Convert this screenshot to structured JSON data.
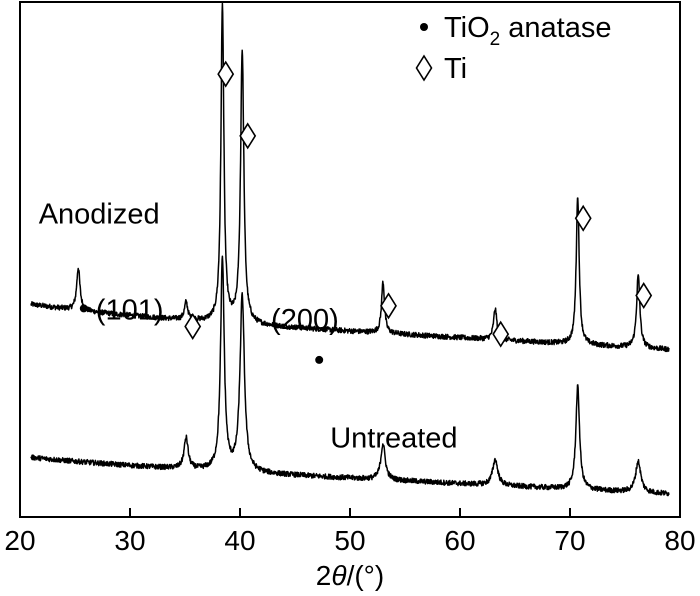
{
  "chart_data": {
    "type": "line",
    "title": "",
    "xlabel": "2θ/(°)",
    "xlabel_parts": {
      "prefix": "2",
      "symbol": "θ",
      "suffix": "/(°)"
    },
    "ylabel": "",
    "xlim": [
      20,
      80
    ],
    "ylim": [
      0,
      100
    ],
    "x_ticks": [
      20,
      30,
      40,
      50,
      60,
      70,
      80
    ],
    "x_tick_labels": [
      "20",
      "30",
      "40",
      "50",
      "60",
      "70",
      "80"
    ],
    "y_ticks_shown": false,
    "grid": false,
    "legend": {
      "placement": "top-right",
      "entries": [
        {
          "marker": "dot",
          "label_main": "TiO",
          "label_sub": "2",
          "label_rest": " anatase"
        },
        {
          "marker": "diamond",
          "label_main": "Ti",
          "label_sub": "",
          "label_rest": ""
        }
      ]
    },
    "series": [
      {
        "name": "Anodized",
        "baseline_start": 39.5,
        "baseline_end": 32.5,
        "peaks": [
          {
            "x": 25.3,
            "height": 8.3,
            "width": 0.18
          },
          {
            "x": 35.1,
            "height": 3.4,
            "width": 0.18
          },
          {
            "x": 38.4,
            "height": 61.5,
            "width": 0.16
          },
          {
            "x": 40.2,
            "height": 53.0,
            "width": 0.18
          },
          {
            "x": 53.0,
            "height": 10.0,
            "width": 0.16
          },
          {
            "x": 63.2,
            "height": 6.0,
            "width": 0.18
          },
          {
            "x": 70.7,
            "height": 29.0,
            "width": 0.16
          },
          {
            "x": 76.2,
            "height": 14.0,
            "width": 0.18
          }
        ]
      },
      {
        "name": "Untreated",
        "baseline_start": 10.5,
        "baseline_end": 4.5,
        "peaks": [
          {
            "x": 35.1,
            "height": 6.0,
            "width": 0.22
          },
          {
            "x": 38.4,
            "height": 41.0,
            "width": 0.2
          },
          {
            "x": 40.2,
            "height": 34.0,
            "width": 0.24
          },
          {
            "x": 53.0,
            "height": 7.0,
            "width": 0.24
          },
          {
            "x": 63.2,
            "height": 5.0,
            "width": 0.28
          },
          {
            "x": 70.7,
            "height": 20.0,
            "width": 0.2
          },
          {
            "x": 76.2,
            "height": 6.0,
            "width": 0.28
          }
        ]
      }
    ],
    "annotations": [
      {
        "type": "text",
        "text": "Anodized",
        "x": 21.7,
        "y": 57
      },
      {
        "type": "text",
        "text": "Untreated",
        "x": 48.2,
        "y": 13.5
      },
      {
        "type": "dot-label",
        "text": "(101)",
        "x": 25.8,
        "y": 40.5
      },
      {
        "type": "dot-label",
        "text": "(200)",
        "x": 47.2,
        "y": 30.5,
        "text_x": 45.9,
        "text_y": 36.5
      },
      {
        "type": "diamond",
        "x": 35.7,
        "y": 37.0
      },
      {
        "type": "diamond",
        "x": 38.7,
        "y": 86.0
      },
      {
        "type": "diamond",
        "x": 40.7,
        "y": 74.0
      },
      {
        "type": "diamond",
        "x": 53.5,
        "y": 41.0
      },
      {
        "type": "diamond",
        "x": 63.7,
        "y": 35.5
      },
      {
        "type": "diamond",
        "x": 71.2,
        "y": 58.0
      },
      {
        "type": "diamond",
        "x": 76.7,
        "y": 43.0
      }
    ]
  }
}
